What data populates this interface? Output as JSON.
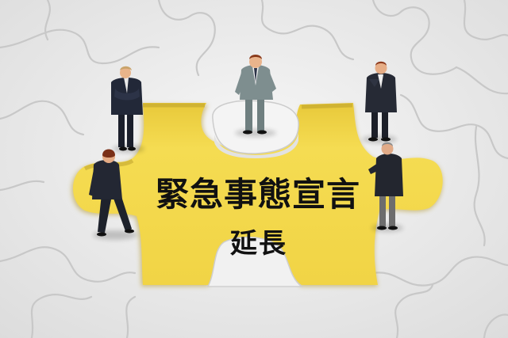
{
  "scene": {
    "description_labels": {
      "headline": "緊急事態宣言",
      "subline": "延長"
    },
    "colors": {
      "puzzle_white": "#f3f3f3",
      "puzzle_seam": "#cfcfcf",
      "hole_yellow": "#f3d94a",
      "hole_shadow": "#c9a92a",
      "suit_navy": "#1f2433",
      "suit_gray": "#7d8a8a",
      "skin": "#e9b48c",
      "hair_brown": "#7a3b1e",
      "text": "#111111"
    }
  }
}
